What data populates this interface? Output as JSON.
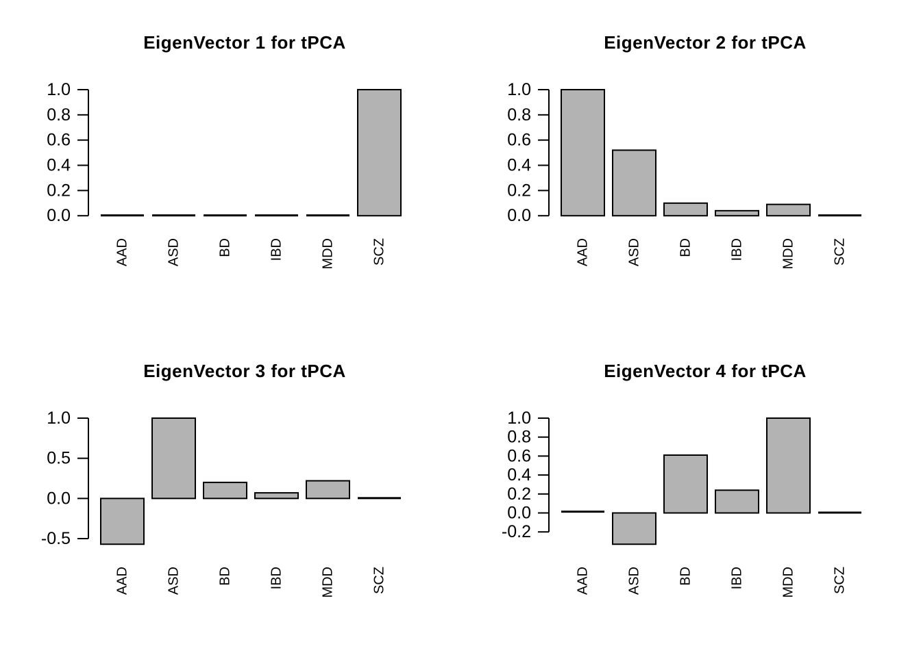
{
  "figure": {
    "background_color": "#ffffff",
    "text_color": "#000000",
    "bar_fill_color": "#b3b3b3",
    "bar_border_color": "#000000",
    "axis_color": "#000000"
  },
  "chart_data": [
    {
      "type": "bar",
      "title": "EigenVector 1 for tPCA",
      "categories": [
        "AAD",
        "ASD",
        "BD",
        "IBD",
        "MDD",
        "SCZ"
      ],
      "values": [
        0,
        0,
        0,
        0,
        0,
        1.0
      ],
      "yticks": [
        0.0,
        0.2,
        0.4,
        0.6,
        0.8,
        1.0
      ],
      "ylim": [
        0.0,
        1.0
      ],
      "xlabel": "",
      "ylabel": "",
      "grid": false,
      "legend": null,
      "x_label_rotation": 90
    },
    {
      "type": "bar",
      "title": "EigenVector 2 for tPCA",
      "categories": [
        "AAD",
        "ASD",
        "BD",
        "IBD",
        "MDD",
        "SCZ"
      ],
      "values": [
        1.0,
        0.52,
        0.1,
        0.04,
        0.09,
        0
      ],
      "yticks": [
        0.0,
        0.2,
        0.4,
        0.6,
        0.8,
        1.0
      ],
      "ylim": [
        0.0,
        1.0
      ],
      "xlabel": "",
      "ylabel": "",
      "grid": false,
      "legend": null,
      "x_label_rotation": 90
    },
    {
      "type": "bar",
      "title": "EigenVector 3 for tPCA",
      "categories": [
        "AAD",
        "ASD",
        "BD",
        "IBD",
        "MDD",
        "SCZ"
      ],
      "values": [
        -0.57,
        1.0,
        0.2,
        0.07,
        0.22,
        0
      ],
      "yticks": [
        -0.5,
        0.0,
        0.5,
        1.0
      ],
      "ylim": [
        -0.57,
        1.0
      ],
      "xlabel": "",
      "ylabel": "",
      "grid": false,
      "legend": null,
      "x_label_rotation": 90
    },
    {
      "type": "bar",
      "title": "EigenVector 4 for tPCA",
      "categories": [
        "AAD",
        "ASD",
        "BD",
        "IBD",
        "MDD",
        "SCZ"
      ],
      "values": [
        0.01,
        -0.33,
        0.61,
        0.24,
        1.0,
        0
      ],
      "yticks": [
        -0.2,
        0.0,
        0.2,
        0.4,
        0.6,
        0.8,
        1.0
      ],
      "ylim": [
        -0.33,
        1.0
      ],
      "xlabel": "",
      "ylabel": "",
      "grid": false,
      "legend": null,
      "x_label_rotation": 90
    }
  ]
}
